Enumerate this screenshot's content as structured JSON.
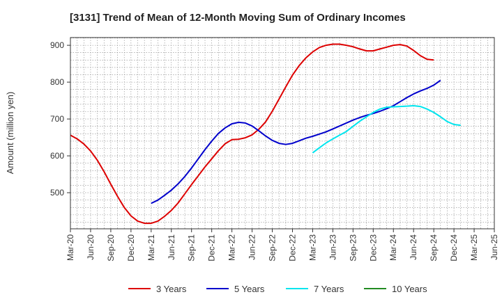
{
  "chart_data": {
    "type": "line",
    "title": "[3131]  Trend of Mean of 12-Month Moving Sum of Ordinary Incomes",
    "xlabel": "",
    "ylabel": "Amount (million yen)",
    "ylim": [
      402,
      921
    ],
    "yticks": [
      500,
      600,
      700,
      800,
      900
    ],
    "x_start": "2020-03",
    "x_end": "2025-06",
    "xtick_labels": [
      "Mar-20",
      "Jun-20",
      "Sep-20",
      "Dec-20",
      "Mar-21",
      "Jun-21",
      "Sep-21",
      "Dec-21",
      "Mar-22",
      "Jun-22",
      "Sep-22",
      "Dec-22",
      "Mar-23",
      "Jun-23",
      "Sep-23",
      "Dec-23",
      "Mar-24",
      "Jun-24",
      "Sep-24",
      "Dec-24",
      "Mar-25",
      "Jun-25"
    ],
    "grid": true,
    "legend_position": "bottom",
    "series": [
      {
        "name": "3 Years",
        "color": "#dd0000",
        "start": "2020-03",
        "values": [
          656,
          646,
          632,
          613,
          588,
          557,
          523,
          490,
          460,
          437,
          423,
          417,
          417,
          423,
          436,
          452,
          472,
          497,
          522,
          546,
          570,
          592,
          614,
          633,
          644,
          645,
          649,
          657,
          672,
          692,
          721,
          754,
          787,
          819,
          845,
          866,
          882,
          894,
          900,
          903,
          903,
          900,
          896,
          890,
          885,
          885,
          890,
          895,
          900,
          902,
          898,
          886,
          872,
          862,
          860
        ]
      },
      {
        "name": "5 Years",
        "color": "#0000cc",
        "start": "2021-03",
        "values": [
          471,
          480,
          493,
          507,
          524,
          544,
          567,
          592,
          617,
          640,
          661,
          676,
          687,
          691,
          689,
          681,
          668,
          654,
          642,
          634,
          631,
          634,
          641,
          648,
          653,
          659,
          665,
          673,
          681,
          689,
          697,
          704,
          710,
          715,
          721,
          728,
          736,
          747,
          758,
          768,
          776,
          783,
          792,
          805
        ]
      },
      {
        "name": "7 Years",
        "color": "#00e5ee",
        "start": "2023-03",
        "values": [
          608,
          622,
          635,
          646,
          656,
          666,
          680,
          694,
          706,
          718,
          727,
          732,
          733,
          734,
          735,
          736,
          734,
          727,
          718,
          706,
          693,
          685,
          683
        ]
      },
      {
        "name": "10 Years",
        "color": "#228b22",
        "start": "2023-03",
        "values": []
      }
    ]
  }
}
